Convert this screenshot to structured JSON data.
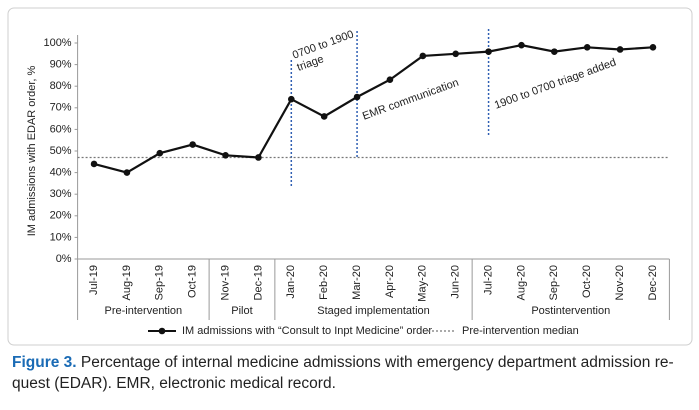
{
  "chart_data": {
    "type": "line",
    "ylabel": "IM admissions with EDAR order, %",
    "categories": [
      "Jul-19",
      "Aug-19",
      "Sep-19",
      "Oct-19",
      "Nov-19",
      "Dec-19",
      "Jan-20",
      "Feb-20",
      "Mar-20",
      "Apr-20",
      "May-20",
      "Jun-20",
      "Jul-20",
      "Aug-20",
      "Sep-20",
      "Oct-20",
      "Nov-20",
      "Dec-20"
    ],
    "groups": [
      {
        "name": "Pre-intervention",
        "span": 4
      },
      {
        "name": "Pilot",
        "span": 2
      },
      {
        "name": "Staged implementation",
        "span": 6
      },
      {
        "name": "Postintervention",
        "span": 6
      }
    ],
    "series": [
      {
        "name": "IM admissions with “Consult to Inpt Medicine” order",
        "color": "#111111",
        "values": [
          44,
          40,
          49,
          53,
          48,
          47,
          74,
          66,
          75,
          83,
          94,
          95,
          96,
          99,
          96,
          98,
          97,
          98
        ]
      }
    ],
    "reference_line": {
      "name": "Pre-intervention median",
      "value": 47,
      "color": "#777777"
    },
    "annotations": [
      {
        "lines": [
          "0700 to 1900",
          "triage"
        ]
      },
      {
        "lines": [
          "EMR communication"
        ]
      },
      {
        "lines": [
          "1900 to 0700 triage added"
        ]
      }
    ],
    "ylim": [
      0,
      100
    ],
    "yticks": [
      {
        "value": 0,
        "label": "0%"
      },
      {
        "value": 10,
        "label": "10%"
      },
      {
        "value": 20,
        "label": "20%"
      },
      {
        "value": 30,
        "label": "30%"
      },
      {
        "value": 40,
        "label": "40%"
      },
      {
        "value": 50,
        "label": "50%"
      },
      {
        "value": 60,
        "label": "60%"
      },
      {
        "value": 70,
        "label": "70%"
      },
      {
        "value": 80,
        "label": "80%"
      },
      {
        "value": 90,
        "label": "90%"
      },
      {
        "value": 100,
        "label": "100%"
      }
    ]
  },
  "caption": {
    "label": "Figure 3.",
    "lines": [
      "Percentage of internal medicine admissions with emergency department admission re-",
      "quest (EDAR). EMR, electronic medical record."
    ]
  }
}
